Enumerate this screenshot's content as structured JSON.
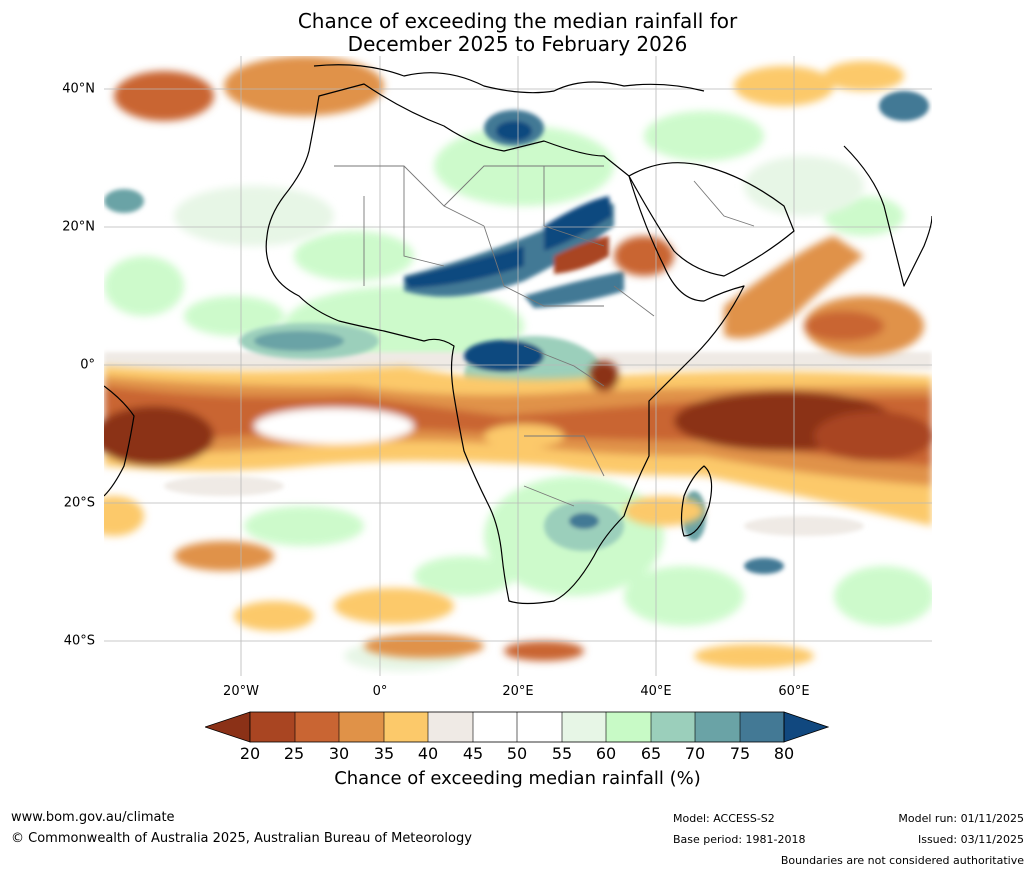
{
  "title": {
    "line1": "Chance of exceeding the median rainfall for",
    "line2": "December 2025 to February 2026"
  },
  "map": {
    "region": "Africa, Middle East and surrounding oceans",
    "lat_labels": [
      "40°N",
      "20°N",
      "0°",
      "20°S",
      "40°S"
    ],
    "lon_labels": [
      "20°W",
      "0°",
      "20°E",
      "40°E",
      "60°E"
    ]
  },
  "colorbar": {
    "ticks": [
      "20",
      "25",
      "30",
      "35",
      "40",
      "45",
      "50",
      "55",
      "60",
      "65",
      "70",
      "75",
      "80"
    ],
    "colors": {
      "below20": "#8b3117",
      "c20_25": "#a94522",
      "c25_30": "#c96533",
      "c30_35": "#e09248",
      "c35_40": "#fcc96a",
      "c40_45": "#efeae5",
      "c45_55": "#ffffff",
      "c55_60": "#e7f6e6",
      "c60_65": "#c8fac6",
      "c65_70": "#9bcfbb",
      "c70_75": "#6aa3a6",
      "c75_80": "#437995",
      "above80": "#11487f"
    },
    "label": "Chance of exceeding median rainfall (%)"
  },
  "footer": {
    "website": "www.bom.gov.au/climate",
    "copyright": "© Commonwealth of Australia 2025, Australian Bureau of Meteorology",
    "model": "Model: ACCESS-S2",
    "base_period": "Base period: 1981-2018",
    "model_run": "Model run: 01/11/2025",
    "issued": "Issued: 03/11/2025",
    "disclaimer": "Boundaries are not considered authoritative"
  }
}
